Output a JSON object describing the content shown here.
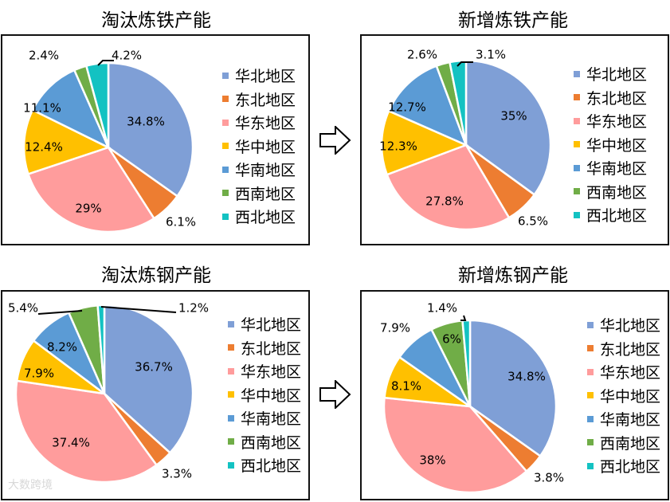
{
  "regions": [
    "华北地区",
    "东北地区",
    "华东地区",
    "华中地区",
    "华南地区",
    "西南地区",
    "西北地区"
  ],
  "colors": [
    "#7f9fd6",
    "#ed7d31",
    "#ff9c9c",
    "#ffc000",
    "#5b9bd5",
    "#70ad47",
    "#13c2c2"
  ],
  "watermark": "大数跨境",
  "chart_data": [
    {
      "type": "pie",
      "title": "淘汰炼铁产能",
      "categories": [
        "华北地区",
        "东北地区",
        "华东地区",
        "华中地区",
        "华南地区",
        "西南地区",
        "西北地区"
      ],
      "values": [
        34.8,
        6.1,
        29,
        12.4,
        11.1,
        2.4,
        4.2
      ],
      "value_labels": [
        "34.8%",
        "6.1%",
        "29%",
        "12.4%",
        "11.1%",
        "2.4%",
        "4.2%"
      ],
      "legend": "right"
    },
    {
      "type": "pie",
      "title": "新增炼铁产能",
      "categories": [
        "华北地区",
        "东北地区",
        "华东地区",
        "华中地区",
        "华南地区",
        "西南地区",
        "西北地区"
      ],
      "values": [
        35,
        6.5,
        27.8,
        12.3,
        12.7,
        2.6,
        3.1
      ],
      "value_labels": [
        "35%",
        "6.5%",
        "27.8%",
        "12.3%",
        "12.7%",
        "2.6%",
        "3.1%"
      ],
      "legend": "right"
    },
    {
      "type": "pie",
      "title": "淘汰炼钢产能",
      "categories": [
        "华北地区",
        "东北地区",
        "华东地区",
        "华中地区",
        "华南地区",
        "西南地区",
        "西北地区"
      ],
      "values": [
        36.7,
        3.3,
        37.4,
        7.9,
        8.2,
        5.4,
        1.2
      ],
      "value_labels": [
        "36.7%",
        "3.3%",
        "37.4%",
        "7.9%",
        "8.2%",
        "5.4%",
        "1.2%"
      ],
      "legend": "right"
    },
    {
      "type": "pie",
      "title": "新增炼钢产能",
      "categories": [
        "华北地区",
        "东北地区",
        "华东地区",
        "华中地区",
        "华南地区",
        "西南地区",
        "西北地区"
      ],
      "values": [
        34.8,
        3.8,
        38,
        8.1,
        7.9,
        6,
        1.4
      ],
      "value_labels": [
        "34.8%",
        "3.8%",
        "38%",
        "8.1%",
        "7.9%",
        "6%",
        "1.4%"
      ],
      "legend": "right"
    }
  ]
}
